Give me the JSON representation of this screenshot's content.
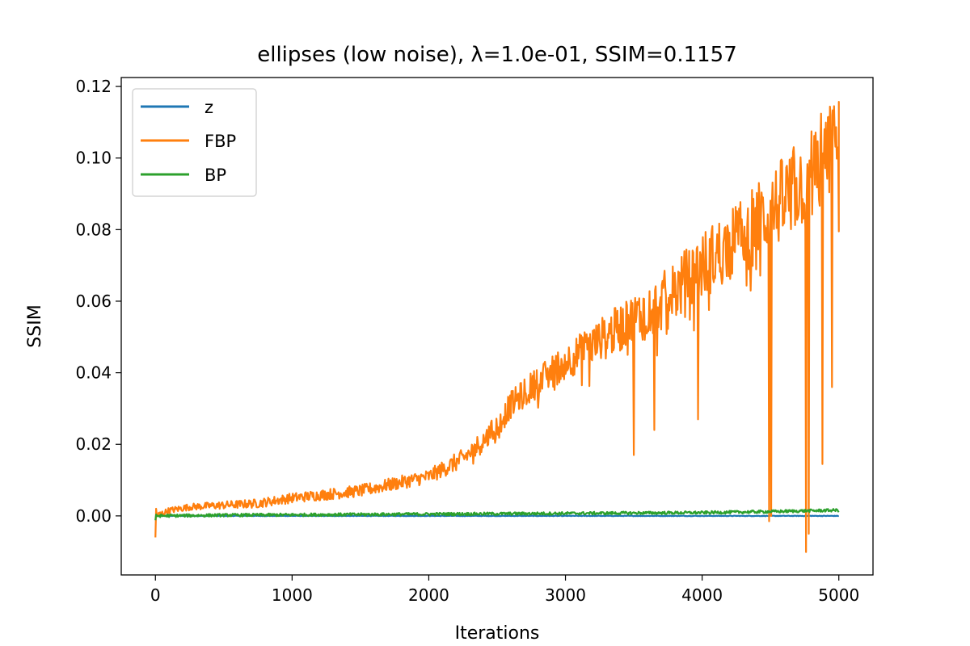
{
  "chart_data": {
    "type": "line",
    "title": "ellipses (low noise), λ=1.0e-01, SSIM=0.1157",
    "xlabel": "Iterations",
    "ylabel": "SSIM",
    "xlim": [
      -250,
      5250
    ],
    "ylim": [
      -0.0165,
      0.1225
    ],
    "x_ticks": [
      0,
      1000,
      2000,
      3000,
      4000,
      5000
    ],
    "x_tick_labels": [
      "0",
      "1000",
      "2000",
      "3000",
      "4000",
      "5000"
    ],
    "y_ticks": [
      0.0,
      0.02,
      0.04,
      0.06,
      0.08,
      0.1,
      0.12
    ],
    "y_tick_labels": [
      "0.00",
      "0.02",
      "0.04",
      "0.06",
      "0.08",
      "0.10",
      "0.12"
    ],
    "grid": false,
    "legend_position": "upper left",
    "series": [
      {
        "name": "z",
        "color": "#1f77b4",
        "x": [
          0,
          500,
          1000,
          1500,
          2000,
          2500,
          3000,
          3500,
          4000,
          4500,
          5000
        ],
        "y": [
          0.0,
          0.0,
          0.0,
          0.0,
          0.0,
          0.0,
          0.0,
          0.0,
          0.0,
          0.0,
          0.0
        ]
      },
      {
        "name": "FBP",
        "color": "#ff7f0e",
        "x": [
          0,
          100,
          250,
          500,
          750,
          1000,
          1250,
          1500,
          1750,
          2000,
          2100,
          2250,
          2400,
          2500,
          2600,
          2750,
          3000,
          3250,
          3500,
          3750,
          4000,
          4250,
          4500,
          4750,
          4900,
          5000
        ],
        "y": [
          0.0,
          0.0015,
          0.0025,
          0.003,
          0.0035,
          0.005,
          0.006,
          0.007,
          0.009,
          0.011,
          0.013,
          0.016,
          0.021,
          0.025,
          0.031,
          0.036,
          0.043,
          0.049,
          0.055,
          0.061,
          0.07,
          0.077,
          0.085,
          0.094,
          0.101,
          0.104
        ]
      },
      {
        "name": "BP",
        "color": "#2ca02c",
        "x": [
          0,
          500,
          1000,
          1500,
          2000,
          2500,
          3000,
          3500,
          4000,
          4500,
          5000
        ],
        "y": [
          0.0,
          0.0002,
          0.0003,
          0.0004,
          0.0005,
          0.0006,
          0.0007,
          0.0008,
          0.0009,
          0.0012,
          0.0016
        ]
      }
    ],
    "dips": {
      "FBP": [
        {
          "x": 3500,
          "y": 0.017
        },
        {
          "x": 3650,
          "y": 0.024
        },
        {
          "x": 3970,
          "y": 0.027
        },
        {
          "x": 4490,
          "y": -0.0015
        },
        {
          "x": 4505,
          "y": 0.0
        },
        {
          "x": 4760,
          "y": -0.0101
        },
        {
          "x": 4780,
          "y": -0.005
        },
        {
          "x": 4880,
          "y": 0.0145
        },
        {
          "x": 4950,
          "y": 0.036
        },
        {
          "x": 5000,
          "y": 0.0795
        }
      ]
    }
  }
}
